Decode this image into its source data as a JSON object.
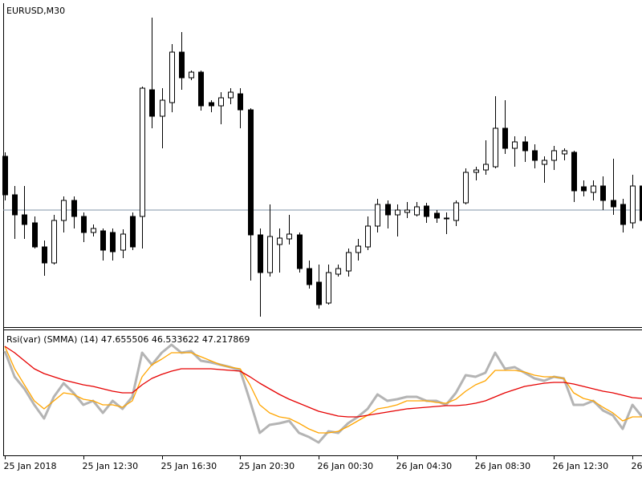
{
  "chart_data": [
    {
      "type": "candlestick",
      "title": "EURUSD,M30",
      "categories": [
        "25 Jan 2018",
        null,
        null,
        null,
        null,
        null,
        null,
        null,
        "25 Jan 12:30",
        null,
        null,
        null,
        null,
        null,
        null,
        null,
        "25 Jan 16:30",
        null,
        null,
        null,
        null,
        null,
        null,
        null,
        "25 Jan 20:30",
        null,
        null,
        null,
        null,
        null,
        null,
        null,
        "26 Jan 00:30",
        null,
        null,
        null,
        null,
        null,
        null,
        null,
        "26 Jan 04:30",
        null,
        null,
        null,
        null,
        null,
        null,
        null,
        "26 Jan 08:30",
        null,
        null,
        null,
        null,
        null,
        null,
        null,
        "26 Jan 12:30",
        null,
        null,
        null,
        null,
        null,
        null,
        null,
        "26",
        null
      ],
      "open": [
        210,
        162,
        137,
        127,
        97,
        77,
        130,
        155,
        135,
        115,
        117,
        115,
        93,
        135,
        135,
        293,
        260,
        277,
        340,
        308,
        315,
        277,
        273,
        283,
        288,
        268,
        112,
        65,
        100,
        107,
        112,
        70,
        53,
        27,
        63,
        67,
        90,
        97,
        123,
        150,
        137,
        140,
        137,
        148,
        139,
        132,
        130,
        152,
        190,
        193,
        197,
        245,
        220,
        228,
        217,
        200,
        205,
        213,
        215,
        172,
        165,
        173,
        155,
        150,
        127,
        173
      ],
      "high": [
        215,
        173,
        173,
        135,
        105,
        137,
        160,
        160,
        140,
        125,
        120,
        120,
        119,
        140,
        297,
        383,
        295,
        350,
        365,
        317,
        317,
        280,
        290,
        295,
        295,
        270,
        120,
        150,
        120,
        137,
        115,
        80,
        75,
        75,
        75,
        95,
        107,
        135,
        157,
        155,
        150,
        153,
        153,
        152,
        143,
        140,
        155,
        195,
        197,
        230,
        285,
        280,
        235,
        235,
        225,
        210,
        223,
        220,
        217,
        180,
        180,
        185,
        207,
        157,
        187,
        175
      ],
      "low": [
        155,
        107,
        107,
        95,
        61,
        75,
        115,
        120,
        103,
        110,
        80,
        80,
        83,
        93,
        95,
        245,
        220,
        265,
        293,
        305,
        267,
        265,
        250,
        275,
        245,
        55,
        10,
        60,
        65,
        100,
        65,
        45,
        20,
        25,
        60,
        60,
        80,
        93,
        115,
        120,
        110,
        133,
        135,
        127,
        127,
        113,
        123,
        150,
        180,
        187,
        195,
        213,
        197,
        203,
        195,
        177,
        193,
        205,
        153,
        160,
        155,
        143,
        137,
        115,
        120,
        125
      ],
      "close": [
        162,
        137,
        125,
        97,
        77,
        130,
        155,
        135,
        115,
        120,
        93,
        91,
        113,
        97,
        295,
        260,
        280,
        340,
        308,
        315,
        273,
        273,
        283,
        290,
        268,
        112,
        65,
        110,
        108,
        113,
        70,
        50,
        25,
        65,
        70,
        90,
        98,
        123,
        150,
        137,
        143,
        143,
        147,
        135,
        133,
        133,
        152,
        190,
        193,
        200,
        245,
        220,
        228,
        217,
        205,
        205,
        217,
        217,
        167,
        167,
        173,
        155,
        147,
        125,
        173,
        130
      ],
      "hline": 143,
      "hline_color": "#8296aa",
      "up_color": "#ffffff",
      "down_color": "#000000",
      "ylim": [
        0,
        400
      ]
    },
    {
      "type": "line",
      "title": "Rsi(var) (SMMA) (14) 47.655506 46.533622 47.217869",
      "series": [
        {
          "color": "#b4b4b4",
          "values": [
            127,
            95,
            80,
            60,
            43,
            70,
            87,
            75,
            60,
            65,
            50,
            65,
            55,
            70,
            125,
            110,
            125,
            135,
            125,
            127,
            115,
            113,
            110,
            107,
            103,
            65,
            25,
            35,
            37,
            40,
            25,
            20,
            13,
            27,
            25,
            37,
            45,
            55,
            73,
            65,
            67,
            70,
            70,
            65,
            65,
            60,
            75,
            97,
            95,
            100,
            125,
            105,
            107,
            100,
            93,
            90,
            95,
            93,
            60,
            60,
            65,
            53,
            47,
            30,
            60,
            45
          ]
        },
        {
          "color": "#ffa500",
          "values": [
            133,
            105,
            85,
            65,
            55,
            65,
            75,
            73,
            67,
            65,
            60,
            60,
            57,
            65,
            95,
            110,
            117,
            125,
            125,
            125,
            120,
            115,
            110,
            107,
            105,
            85,
            60,
            50,
            45,
            43,
            37,
            30,
            25,
            25,
            27,
            33,
            40,
            47,
            55,
            57,
            60,
            65,
            65,
            65,
            63,
            62,
            67,
            77,
            85,
            90,
            103,
            103,
            103,
            101,
            97,
            95,
            95,
            93,
            75,
            68,
            65,
            57,
            50,
            40,
            45,
            45
          ]
        },
        {
          "color": "#e60000",
          "values": [
            133,
            125,
            115,
            105,
            99,
            95,
            91,
            88,
            85,
            83,
            80,
            77,
            75,
            75,
            85,
            93,
            98,
            102,
            105,
            105,
            105,
            105,
            104,
            103,
            102,
            95,
            87,
            80,
            73,
            67,
            62,
            57,
            52,
            49,
            46,
            45,
            45,
            47,
            49,
            51,
            53,
            55,
            56,
            57,
            58,
            59,
            59,
            60,
            62,
            65,
            70,
            75,
            79,
            83,
            85,
            87,
            88,
            88,
            86,
            83,
            80,
            77,
            75,
            72,
            69,
            68
          ]
        }
      ],
      "ylim": [
        0,
        150
      ]
    }
  ]
}
